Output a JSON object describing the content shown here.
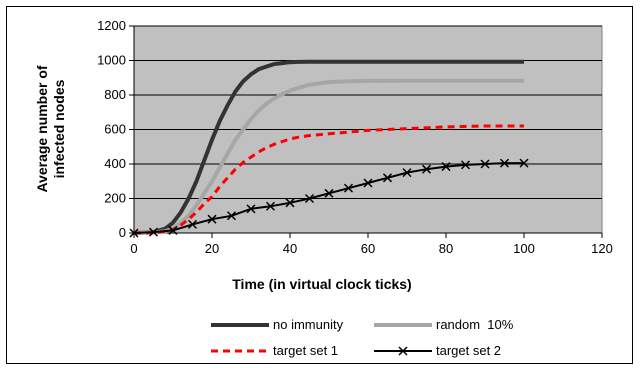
{
  "chart_data": {
    "type": "line",
    "title": "",
    "xlabel": "Time (in virtual clock ticks)",
    "ylabel_lines": [
      "Average number of",
      "infected nodes"
    ],
    "xlim": [
      0,
      120
    ],
    "ylim": [
      0,
      1200
    ],
    "x_ticks": [
      0,
      20,
      40,
      60,
      80,
      100,
      120
    ],
    "y_ticks": [
      0,
      200,
      400,
      600,
      800,
      1000,
      1200
    ],
    "plot_background": "#c0c0c0",
    "grid": "horizontal",
    "legend_position": "bottom",
    "series": [
      {
        "name": "no immunity",
        "color": "#333333",
        "style": "solid-thick",
        "x": [
          0,
          5,
          8,
          10,
          12,
          14,
          16,
          18,
          20,
          22,
          24,
          26,
          28,
          30,
          32,
          34,
          36,
          38,
          40,
          42,
          45,
          50,
          55,
          60,
          70,
          80,
          90,
          100
        ],
        "y": [
          0,
          5,
          25,
          60,
          120,
          200,
          300,
          420,
          540,
          650,
          740,
          820,
          880,
          920,
          950,
          965,
          980,
          985,
          990,
          992,
          993,
          993,
          993,
          993,
          993,
          993,
          993,
          993
        ]
      },
      {
        "name": "random  10%",
        "color": "#a6a6a6",
        "style": "solid-thick",
        "x": [
          0,
          5,
          8,
          10,
          12,
          14,
          16,
          18,
          20,
          22,
          24,
          26,
          28,
          30,
          32,
          34,
          36,
          38,
          40,
          42,
          45,
          50,
          55,
          60,
          70,
          80,
          90,
          100
        ],
        "y": [
          0,
          3,
          10,
          25,
          60,
          100,
          160,
          230,
          300,
          380,
          460,
          540,
          600,
          660,
          710,
          750,
          780,
          805,
          825,
          840,
          860,
          875,
          880,
          882,
          883,
          883,
          883,
          883
        ]
      },
      {
        "name": "target set 1",
        "color": "#ff0000",
        "style": "dashed",
        "x": [
          0,
          5,
          8,
          10,
          12,
          14,
          16,
          18,
          20,
          22,
          24,
          26,
          28,
          30,
          32,
          34,
          36,
          38,
          40,
          42,
          45,
          50,
          55,
          60,
          70,
          80,
          90,
          100
        ],
        "y": [
          0,
          2,
          8,
          20,
          45,
          80,
          120,
          170,
          210,
          270,
          320,
          370,
          410,
          440,
          470,
          495,
          515,
          530,
          545,
          555,
          565,
          575,
          585,
          595,
          605,
          615,
          620,
          620
        ]
      },
      {
        "name": "target set 2",
        "color": "#000000",
        "style": "solid-x-markers",
        "x": [
          0,
          5,
          10,
          15,
          20,
          25,
          30,
          35,
          40,
          45,
          50,
          55,
          60,
          65,
          70,
          75,
          80,
          85,
          90,
          95,
          100
        ],
        "y": [
          0,
          5,
          15,
          50,
          80,
          100,
          140,
          155,
          175,
          200,
          230,
          260,
          290,
          320,
          350,
          370,
          385,
          395,
          400,
          405,
          405
        ]
      }
    ]
  }
}
